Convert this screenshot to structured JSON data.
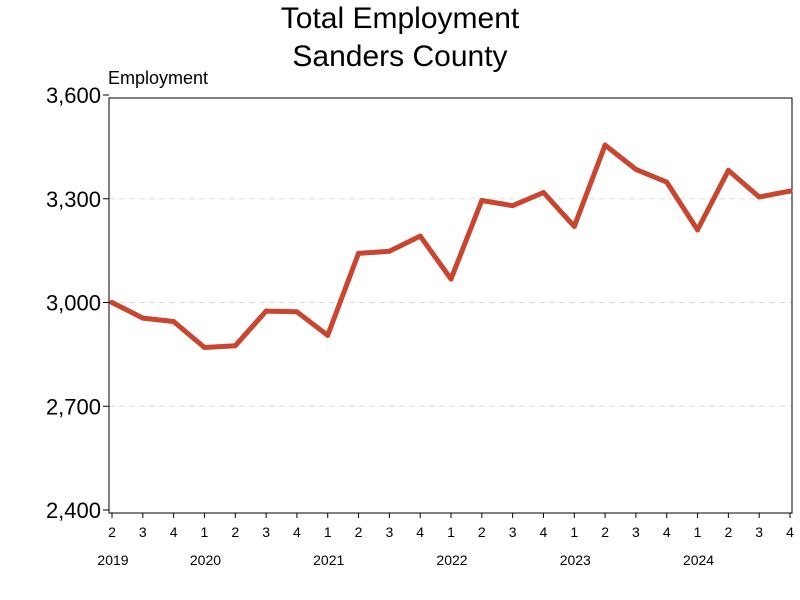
{
  "chart_data": {
    "type": "line",
    "title": "Total Employment",
    "subtitle": "Sanders County",
    "ylabel": "Employment",
    "xlabel": "",
    "ylim": [
      2400,
      3600
    ],
    "yticks": [
      2400,
      2700,
      3000,
      3300,
      3600
    ],
    "ytick_labels": [
      "2,400",
      "2,700",
      "3,000",
      "3,300",
      "3,600"
    ],
    "grid": true,
    "line_color": "#C9452F",
    "quarter_labels": [
      "2",
      "3",
      "4",
      "1",
      "2",
      "3",
      "4",
      "1",
      "2",
      "3",
      "4",
      "1",
      "2",
      "3",
      "4",
      "1",
      "2",
      "3",
      "4",
      "1",
      "2",
      "3",
      "4"
    ],
    "year_labels": [
      {
        "year": "2019",
        "at_index": 0
      },
      {
        "year": "2020",
        "at_index": 3
      },
      {
        "year": "2021",
        "at_index": 7
      },
      {
        "year": "2022",
        "at_index": 11
      },
      {
        "year": "2023",
        "at_index": 15
      },
      {
        "year": "2024",
        "at_index": 19
      }
    ],
    "series": [
      {
        "x": [
          "2019 Q2",
          "2019 Q3",
          "2019 Q4",
          "2020 Q1",
          "2020 Q2",
          "2020 Q3",
          "2020 Q4",
          "2021 Q1",
          "2021 Q2",
          "2021 Q3",
          "2021 Q4",
          "2022 Q1",
          "2022 Q2",
          "2022 Q3",
          "2022 Q4",
          "2023 Q1",
          "2023 Q2",
          "2023 Q3",
          "2023 Q4",
          "2024 Q1",
          "2024 Q2",
          "2024 Q3",
          "2024 Q4"
        ],
        "values": [
          3000,
          2955,
          2945,
          2870,
          2875,
          2975,
          2973,
          2905,
          3142,
          3148,
          3192,
          3068,
          3295,
          3280,
          3318,
          3220,
          3455,
          3385,
          3348,
          3210,
          3382,
          3305,
          3322
        ]
      }
    ]
  }
}
